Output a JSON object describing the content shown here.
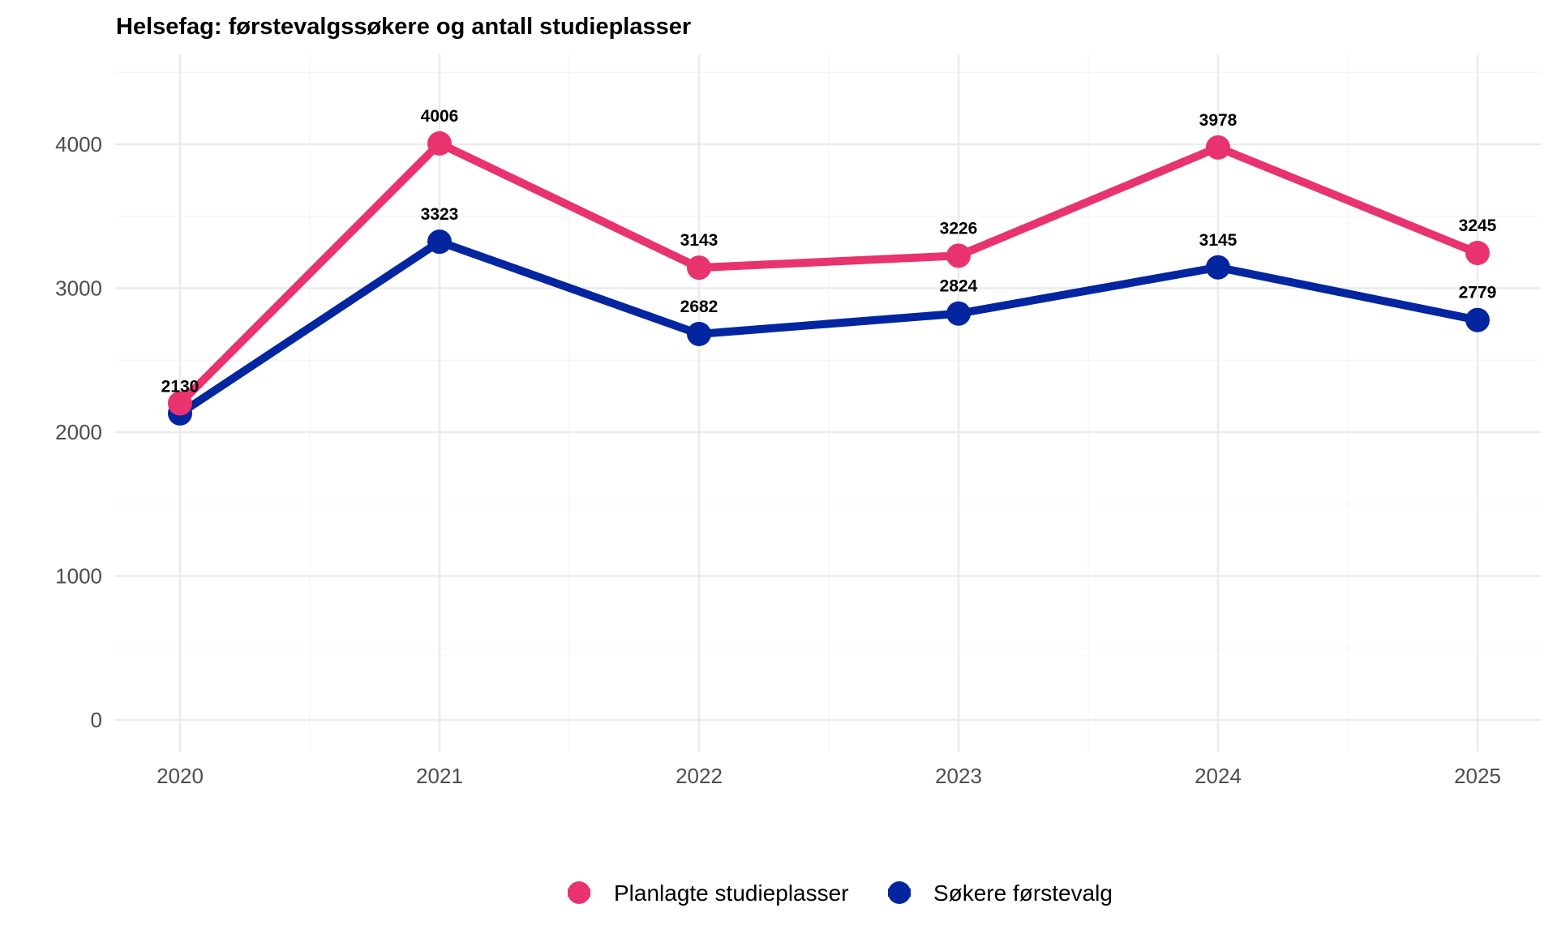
{
  "chart_data": {
    "type": "line",
    "title": "Helsefag: førstevalgssøkere og antall studieplasser",
    "xlabel": "",
    "ylabel": "",
    "x": [
      "2020",
      "2021",
      "2022",
      "2023",
      "2024",
      "2025"
    ],
    "yticks": [
      0,
      1000,
      2000,
      3000,
      4000
    ],
    "ylim": [
      -220,
      4530
    ],
    "grid": true,
    "legend_position": "bottom",
    "series": [
      {
        "name": "Planlagte studieplasser",
        "color": "#E8336F",
        "values": [
          2200,
          4006,
          3143,
          3226,
          3978,
          3245
        ],
        "labels": [
          "",
          "4006",
          "3143",
          "3226",
          "3978",
          "3245"
        ]
      },
      {
        "name": "Søkere førstevalg",
        "color": "#0326A0",
        "values": [
          2130,
          3323,
          2682,
          2824,
          3145,
          2779
        ],
        "labels": [
          "2130",
          "3323",
          "2682",
          "2824",
          "3145",
          "2779"
        ]
      }
    ]
  }
}
